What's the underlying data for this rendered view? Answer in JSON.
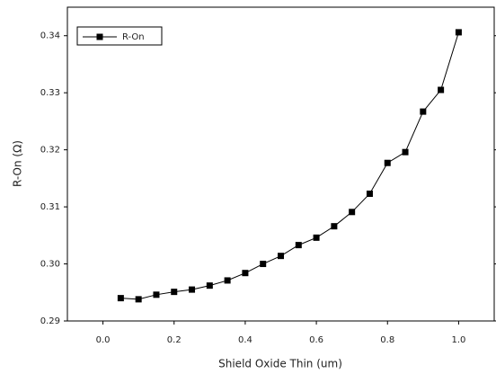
{
  "chart_data": {
    "type": "line",
    "x_label": "Shield Oxide Thin (um)",
    "y_label": "R-On   (Ω)",
    "x": [
      0.05,
      0.1,
      0.15,
      0.2,
      0.25,
      0.3,
      0.35,
      0.4,
      0.45,
      0.5,
      0.55,
      0.6,
      0.65,
      0.7,
      0.75,
      0.8,
      0.85,
      0.9,
      0.95,
      1.0
    ],
    "series": [
      {
        "name": "R-On",
        "color": "#000000",
        "values": [
          0.294,
          0.2938,
          0.2946,
          0.2951,
          0.2955,
          0.2962,
          0.2971,
          0.2984,
          0.3,
          0.3014,
          0.3033,
          0.3046,
          0.3066,
          0.3091,
          0.3123,
          0.3177,
          0.3196,
          0.3267,
          0.3305,
          0.3406
        ]
      }
    ],
    "xlim": [
      -0.1,
      1.1
    ],
    "ylim": [
      0.29,
      0.345
    ],
    "xticks": [
      {
        "value": 0,
        "label": "0.0"
      },
      0.2,
      0.4,
      0.6,
      0.8,
      {
        "value": 1,
        "label": "1.0"
      }
    ],
    "yticks": [
      0.29,
      {
        "value": 0.3,
        "label": "0.30"
      },
      0.31,
      0.32,
      0.33,
      0.34
    ],
    "legend": "top-left",
    "grid": false
  }
}
